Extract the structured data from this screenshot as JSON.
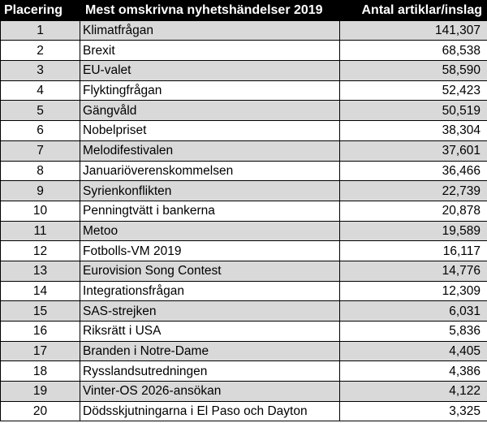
{
  "table": {
    "headers": {
      "rank": "Placering",
      "event": "Mest omskrivna nyhetshändelser 2019",
      "count": "Antal artiklar/inslag"
    },
    "rows": [
      {
        "rank": "1",
        "event": "Klimatfrågan",
        "count": "141,307"
      },
      {
        "rank": "2",
        "event": "Brexit",
        "count": "68,538"
      },
      {
        "rank": "3",
        "event": "EU-valet",
        "count": "58,590"
      },
      {
        "rank": "4",
        "event": "Flyktingfrågan",
        "count": "52,423"
      },
      {
        "rank": "5",
        "event": "Gängvåld",
        "count": "50,519"
      },
      {
        "rank": "6",
        "event": "Nobelpriset",
        "count": "38,304"
      },
      {
        "rank": "7",
        "event": "Melodifestivalen",
        "count": "37,601"
      },
      {
        "rank": "8",
        "event": "Januariöverenskommelsen",
        "count": "36,466"
      },
      {
        "rank": "9",
        "event": "Syrienkonflikten",
        "count": "22,739"
      },
      {
        "rank": "10",
        "event": "Penningtvätt i bankerna",
        "count": "20,878"
      },
      {
        "rank": "11",
        "event": "Metoo",
        "count": "19,589"
      },
      {
        "rank": "12",
        "event": "Fotbolls-VM 2019",
        "count": "16,117"
      },
      {
        "rank": "13",
        "event": "Eurovision Song Contest",
        "count": "14,776"
      },
      {
        "rank": "14",
        "event": "Integrationsfrågan",
        "count": "12,309"
      },
      {
        "rank": "15",
        "event": "SAS-strejken",
        "count": "6,031"
      },
      {
        "rank": "16",
        "event": "Riksrätt i USA",
        "count": "5,836"
      },
      {
        "rank": "17",
        "event": "Branden i Notre-Dame",
        "count": "4,405"
      },
      {
        "rank": "18",
        "event": "Rysslandsutredningen",
        "count": "4,386"
      },
      {
        "rank": "19",
        "event": "Vinter-OS 2026-ansökan",
        "count": "4,122"
      },
      {
        "rank": "20",
        "event": "Dödsskjutningarna i El Paso och Dayton",
        "count": "3,325"
      }
    ]
  },
  "colors": {
    "header_bg": "#000000",
    "header_text": "#ffffff",
    "shaded_row": "#d9d9d9",
    "plain_row": "#ffffff",
    "border": "#000000"
  }
}
